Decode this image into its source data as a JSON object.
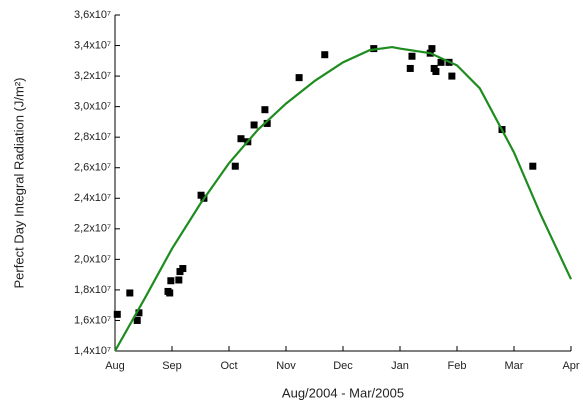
{
  "chart_data": {
    "type": "scatter",
    "x_label": "Aug/2004 - Mar/2005",
    "y_label": "Perfect Day Integral Radiation (J/m²)",
    "xlim": [
      0,
      8
    ],
    "xticks": [
      {
        "value": 0,
        "label": "Aug"
      },
      {
        "value": 1,
        "label": "Sep"
      },
      {
        "value": 2,
        "label": "Oct"
      },
      {
        "value": 3,
        "label": "Nov"
      },
      {
        "value": 4,
        "label": "Dec"
      },
      {
        "value": 5,
        "label": "Jan"
      },
      {
        "value": 6,
        "label": "Feb"
      },
      {
        "value": 7,
        "label": "Mar"
      },
      {
        "value": 8,
        "label": "Apr"
      }
    ],
    "ylim": [
      14000000,
      36000000
    ],
    "yticks": [
      {
        "value": 14000000,
        "label": "1,4x10⁷"
      },
      {
        "value": 16000000,
        "label": "1,6x10⁷"
      },
      {
        "value": 18000000,
        "label": "1,8x10⁷"
      },
      {
        "value": 20000000,
        "label": "2,0x10⁷"
      },
      {
        "value": 22000000,
        "label": "2,2x10⁷"
      },
      {
        "value": 24000000,
        "label": "2,4x10⁷"
      },
      {
        "value": 26000000,
        "label": "2,6x10⁷"
      },
      {
        "value": 28000000,
        "label": "2,8x10⁷"
      },
      {
        "value": 30000000,
        "label": "3,0x10⁷"
      },
      {
        "value": 32000000,
        "label": "3,2x10⁷"
      },
      {
        "value": 34000000,
        "label": "3,4x10⁷"
      },
      {
        "value": 36000000,
        "label": "3,6x10⁷"
      }
    ],
    "series": [
      {
        "type": "scatter",
        "color": "#000000",
        "x": [
          0.04,
          0.26,
          0.39,
          0.42,
          0.93,
          0.96,
          0.98,
          1.12,
          1.14,
          1.19,
          1.51,
          1.56,
          2.11,
          2.21,
          2.33,
          2.44,
          2.63,
          2.67,
          3.23,
          3.68,
          4.54,
          5.18,
          5.21,
          5.53,
          5.56,
          5.6,
          5.63,
          5.72,
          5.86,
          5.91,
          6.79,
          7.33
        ],
        "values": [
          16400000,
          17800000,
          16000000,
          16500000,
          17900000,
          17800000,
          18600000,
          18650000,
          19200000,
          19400000,
          24200000,
          24000000,
          26100000,
          27900000,
          27700000,
          28800000,
          29800000,
          28900000,
          31900000,
          33400000,
          33800000,
          32500000,
          33300000,
          33500000,
          33800000,
          32500000,
          32300000,
          32900000,
          32900000,
          32000000,
          28500000,
          26100000
        ]
      },
      {
        "type": "line",
        "color": "#1e8c1e",
        "x": [
          0,
          0.53,
          1,
          1.49,
          2,
          2.51,
          3,
          3.51,
          4,
          4.47,
          4.86,
          5,
          5.53,
          6,
          6.4,
          6.7,
          7,
          7.46,
          8
        ],
        "values": [
          14000000,
          17500000,
          20700000,
          23600000,
          26300000,
          28500000,
          30200000,
          31700000,
          32900000,
          33700000,
          33900000,
          33800000,
          33500000,
          32700000,
          31200000,
          29100000,
          27000000,
          23000000,
          18700000
        ]
      }
    ]
  }
}
